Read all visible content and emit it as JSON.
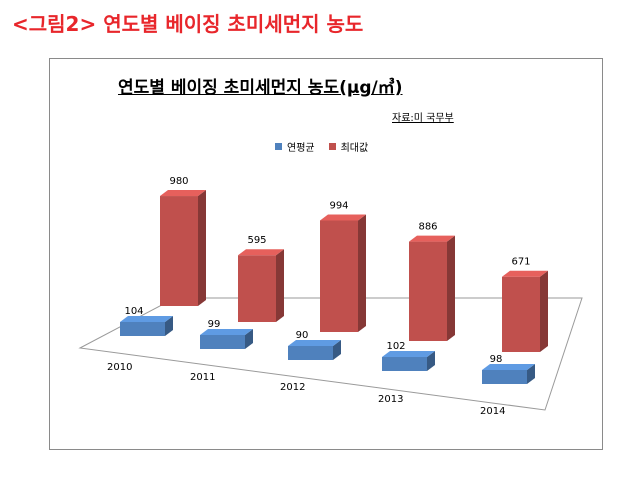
{
  "heading": "<그림2> 연도별 베이징 초미세먼지 농도",
  "chart_data": {
    "type": "bar",
    "title": "연도별 베이징 초미세먼지 농도(µg/㎥)",
    "source": "자료:미 국무부",
    "categories": [
      "2010",
      "2011",
      "2012",
      "2013",
      "2014"
    ],
    "series": [
      {
        "name": "연평균",
        "color": "#4f81bd",
        "values": [
          104,
          99,
          90,
          102,
          98
        ]
      },
      {
        "name": "최대값",
        "color": "#c0504d",
        "values": [
          980,
          595,
          994,
          886,
          671
        ]
      }
    ],
    "legend_position": "top",
    "style": "3d-column"
  }
}
